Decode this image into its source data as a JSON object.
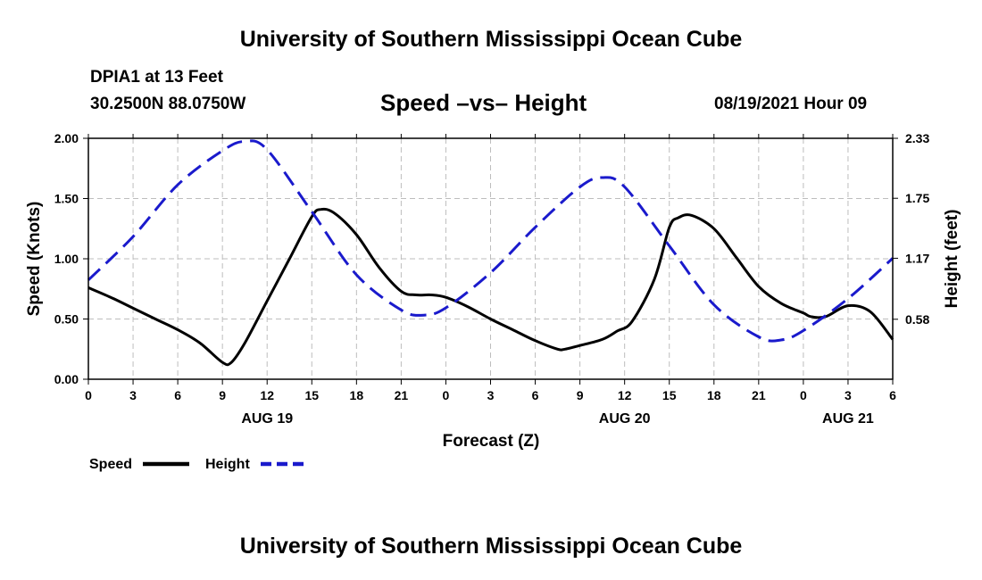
{
  "page": {
    "header_title": "University of Southern Mississippi Ocean Cube",
    "footer_title": "University of Southern Mississippi Ocean Cube",
    "station": "DPIA1 at 13 Feet",
    "coordinates": "30.2500N  88.0750W",
    "chart_title": "Speed –vs– Height",
    "timestamp": "08/19/2021 Hour 09"
  },
  "chart_data": {
    "type": "line",
    "title": "Speed –vs– Height",
    "xlabel": "Forecast (Z)",
    "ylabel": "Speed (Knots)",
    "y2label": "Height (feet)",
    "xlim": [
      0,
      54
    ],
    "ylim": [
      0,
      2.0
    ],
    "y2lim": [
      0,
      2.33
    ],
    "grid": true,
    "x_ticks": [
      0,
      3,
      6,
      9,
      12,
      15,
      18,
      21,
      24,
      27,
      30,
      33,
      36,
      39,
      42,
      45,
      48,
      51,
      54
    ],
    "x_tick_labels": [
      "0",
      "3",
      "6",
      "9",
      "12",
      "15",
      "18",
      "21",
      "0",
      "3",
      "6",
      "9",
      "12",
      "15",
      "18",
      "21",
      "0",
      "3",
      "6"
    ],
    "y_ticks": [
      0,
      0.5,
      1.0,
      1.5,
      2.0
    ],
    "y_tick_labels": [
      "0.00",
      "0.50",
      "1.00",
      "1.50",
      "2.00"
    ],
    "y2_ticks": [
      0.58,
      1.17,
      1.75,
      2.33
    ],
    "y2_tick_labels": [
      "0.58",
      "1.17",
      "1.75",
      "2.33"
    ],
    "day_labels": [
      {
        "x": 12,
        "label": "AUG 19"
      },
      {
        "x": 36,
        "label": "AUG 20"
      },
      {
        "x": 51,
        "label": "AUG 21"
      }
    ],
    "legend": "bottom-left",
    "series": [
      {
        "name": "Speed",
        "axis": "left",
        "color": "#000000",
        "dash": "solid",
        "x": [
          0,
          1.5,
          3,
          4.5,
          6,
          7.5,
          9,
          9.6,
          10.5,
          12,
          13.5,
          15,
          15.6,
          16.5,
          18,
          19.5,
          21,
          22,
          23,
          24,
          25.5,
          27,
          28.5,
          30,
          31.5,
          32,
          33,
          34.5,
          35.5,
          36.5,
          38,
          39,
          39.6,
          40.5,
          42,
          43.5,
          45,
          46.5,
          48,
          48.5,
          49.5,
          51,
          52.5,
          54
        ],
        "values": [
          0.76,
          0.68,
          0.59,
          0.5,
          0.41,
          0.3,
          0.14,
          0.14,
          0.3,
          0.65,
          1.0,
          1.35,
          1.41,
          1.38,
          1.2,
          0.93,
          0.73,
          0.7,
          0.7,
          0.68,
          0.6,
          0.5,
          0.41,
          0.32,
          0.25,
          0.25,
          0.28,
          0.33,
          0.4,
          0.48,
          0.83,
          1.26,
          1.34,
          1.36,
          1.25,
          1.01,
          0.77,
          0.63,
          0.55,
          0.52,
          0.52,
          0.61,
          0.56,
          0.33
        ]
      },
      {
        "name": "Height",
        "axis": "right",
        "color": "#1a1acc",
        "dash": "dashed",
        "x": [
          0,
          3,
          6,
          9,
          10.5,
          12,
          15,
          18,
          21,
          22.5,
          24,
          27,
          30,
          33,
          34.5,
          36,
          39,
          42,
          45,
          46.5,
          48,
          51,
          54
        ],
        "values": [
          0.96,
          1.38,
          1.88,
          2.21,
          2.3,
          2.22,
          1.62,
          1.01,
          0.67,
          0.62,
          0.69,
          1.03,
          1.47,
          1.86,
          1.95,
          1.86,
          1.29,
          0.72,
          0.41,
          0.38,
          0.47,
          0.78,
          1.17
        ]
      }
    ]
  }
}
